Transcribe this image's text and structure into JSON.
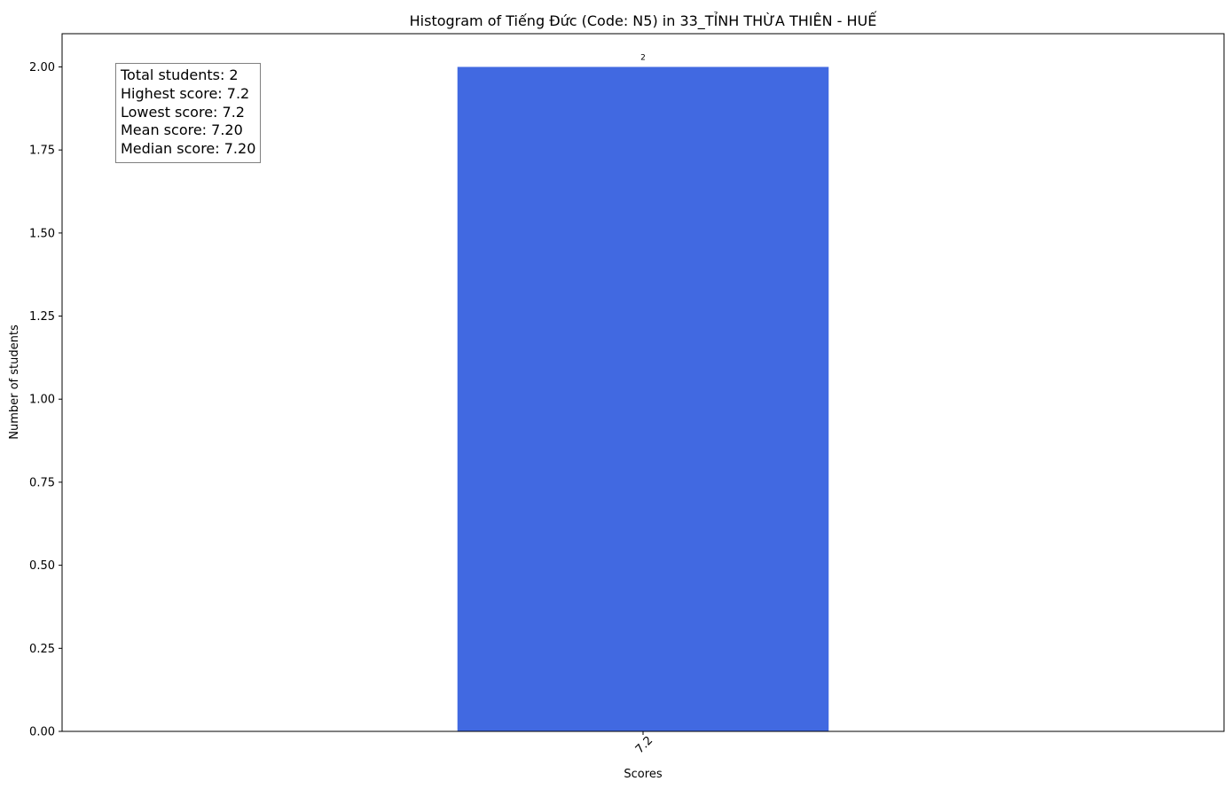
{
  "chart_data": {
    "type": "bar",
    "title": "Histogram of Tiếng Đức (Code: N5) in 33_TỈNH THỪA THIÊN - HUẾ",
    "xlabel": "Scores",
    "ylabel": "Number of students",
    "categories": [
      "7.2"
    ],
    "values": [
      2
    ],
    "data_labels": [
      "2"
    ],
    "ylim": [
      0,
      2.1
    ],
    "yticks": [
      "0.00",
      "0.25",
      "0.50",
      "0.75",
      "1.00",
      "1.25",
      "1.50",
      "1.75",
      "2.00"
    ],
    "ytick_values": [
      0,
      0.25,
      0.5,
      0.75,
      1.0,
      1.25,
      1.5,
      1.75,
      2.0
    ],
    "grid": false,
    "bar_color": "#4169e1",
    "xtick_rotation_deg": -45
  },
  "stats": {
    "total": "Total students: 2",
    "highest": "Highest score: 7.2",
    "lowest": "Lowest score: 7.2",
    "mean": "Mean score: 7.20",
    "median": "Median score: 7.20"
  }
}
